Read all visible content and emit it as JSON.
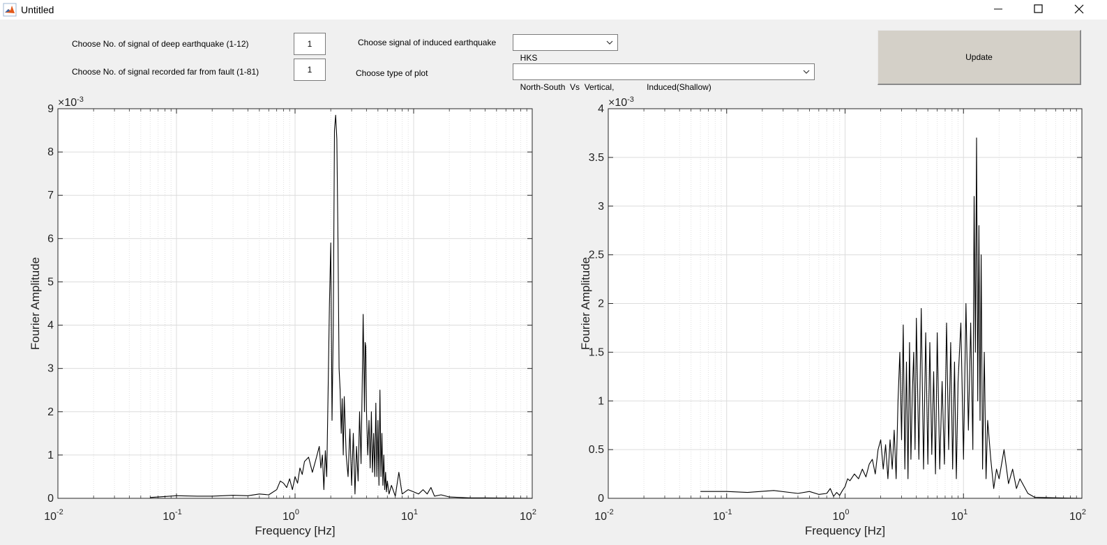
{
  "window": {
    "title": "Untitled"
  },
  "controls": {
    "deep_label": "Choose No. of signal of deep earthquake (1-12)",
    "deep_value": "1",
    "far_label": "Choose No. of signal recorded far from fault (1-81)",
    "far_value": "1",
    "induced_label": "Choose signal of induced earthquake",
    "induced_value": "HKS",
    "plot_type_label": "Choose type of plot",
    "plot_type_value": "North-South  Vs  Vertical,              Induced(Shallow)",
    "update_label": "Update"
  },
  "colors": {
    "background": "#f0f0f0",
    "axes_background": "#ffffff",
    "line": "#000000",
    "grid": "#dcdcdc"
  },
  "chart_data": [
    {
      "type": "line",
      "xscale": "log",
      "xlabel": "Frequency [Hz]",
      "ylabel": "Fourier Amplitude",
      "exponent_label": "×10",
      "exponent_sup": "-3",
      "xlim": [
        0.01,
        100
      ],
      "ylim": [
        0,
        9
      ],
      "xticks": [
        0.01,
        0.1,
        1,
        10,
        100
      ],
      "xtick_labels": [
        {
          "base": "10",
          "exp": "-2"
        },
        {
          "base": "10",
          "exp": "-1"
        },
        {
          "base": "10",
          "exp": "0"
        },
        {
          "base": "10",
          "exp": "1"
        },
        {
          "base": "10",
          "exp": "2"
        }
      ],
      "yticks": [
        0,
        1,
        2,
        3,
        4,
        5,
        6,
        7,
        8,
        9
      ],
      "ytick_labels": [
        "0",
        "1",
        "2",
        "3",
        "4",
        "5",
        "6",
        "7",
        "8",
        "9"
      ],
      "grid": true,
      "series": [
        {
          "x": [
            0.06,
            0.1,
            0.15,
            0.2,
            0.3,
            0.4,
            0.5,
            0.6,
            0.7,
            0.75,
            0.8,
            0.85,
            0.9,
            0.95,
            1.0,
            1.05,
            1.1,
            1.15,
            1.2,
            1.3,
            1.4,
            1.5,
            1.6,
            1.65,
            1.7,
            1.75,
            1.8,
            1.85,
            1.9,
            1.95,
            2.0,
            2.05,
            2.1,
            2.15,
            2.2,
            2.25,
            2.3,
            2.35,
            2.4,
            2.45,
            2.5,
            2.55,
            2.6,
            2.7,
            2.8,
            2.9,
            3.0,
            3.1,
            3.2,
            3.3,
            3.4,
            3.5,
            3.6,
            3.7,
            3.75,
            3.8,
            3.85,
            3.9,
            3.95,
            4.0,
            4.1,
            4.2,
            4.3,
            4.4,
            4.5,
            4.6,
            4.7,
            4.8,
            4.9,
            5.0,
            5.1,
            5.2,
            5.3,
            5.4,
            5.5,
            5.6,
            5.7,
            5.8,
            5.9,
            6.0,
            6.2,
            6.5,
            7.0,
            7.5,
            8.0,
            9.0,
            10.0,
            11.0,
            12.0,
            13.0,
            14.0,
            15.0,
            17.0,
            20.0,
            25.0,
            30.0,
            40.0,
            60.0,
            100.0
          ],
          "y": [
            0.02,
            0.06,
            0.05,
            0.05,
            0.07,
            0.06,
            0.1,
            0.08,
            0.2,
            0.4,
            0.35,
            0.25,
            0.45,
            0.2,
            0.5,
            0.35,
            0.7,
            0.55,
            0.85,
            0.95,
            0.6,
            0.9,
            1.2,
            0.7,
            1.0,
            0.2,
            1.1,
            0.5,
            2.5,
            4.5,
            5.9,
            1.8,
            4.0,
            8.5,
            8.85,
            8.3,
            6.0,
            3.0,
            2.5,
            1.5,
            2.3,
            1.0,
            2.35,
            1.0,
            0.5,
            1.6,
            0.3,
            1.5,
            0.1,
            1.2,
            0.4,
            2.0,
            0.8,
            3.0,
            4.25,
            3.2,
            2.0,
            3.6,
            3.5,
            2.0,
            1.0,
            1.8,
            0.7,
            2.0,
            0.6,
            1.5,
            0.5,
            2.2,
            0.5,
            1.8,
            0.3,
            2.5,
            0.5,
            1.5,
            0.3,
            1.0,
            0.2,
            0.6,
            0.15,
            0.4,
            0.1,
            0.3,
            0.05,
            0.6,
            0.1,
            0.2,
            0.15,
            0.1,
            0.2,
            0.1,
            0.25,
            0.05,
            0.08,
            0.03,
            0.02,
            0.01,
            0.01,
            0.005,
            0.0
          ]
        }
      ]
    },
    {
      "type": "line",
      "xscale": "log",
      "xlabel": "Frequency [Hz]",
      "ylabel": "Fourier Amplitude",
      "exponent_label": "×10",
      "exponent_sup": "-3",
      "xlim": [
        0.01,
        100
      ],
      "ylim": [
        0,
        4
      ],
      "xticks": [
        0.01,
        0.1,
        1,
        10,
        100
      ],
      "xtick_labels": [
        {
          "base": "10",
          "exp": "-2"
        },
        {
          "base": "10",
          "exp": "-1"
        },
        {
          "base": "10",
          "exp": "0"
        },
        {
          "base": "10",
          "exp": "1"
        },
        {
          "base": "10",
          "exp": "2"
        }
      ],
      "yticks": [
        0,
        0.5,
        1,
        1.5,
        2,
        2.5,
        3,
        3.5,
        4
      ],
      "ytick_labels": [
        "0",
        "0.5",
        "1",
        "1.5",
        "2",
        "2.5",
        "3",
        "3.5",
        "4"
      ],
      "grid": true,
      "series": [
        {
          "x": [
            0.06,
            0.1,
            0.15,
            0.25,
            0.4,
            0.5,
            0.6,
            0.7,
            0.75,
            0.8,
            0.85,
            0.9,
            0.95,
            1.0,
            1.05,
            1.1,
            1.2,
            1.3,
            1.4,
            1.5,
            1.6,
            1.7,
            1.8,
            1.9,
            2.0,
            2.1,
            2.2,
            2.3,
            2.4,
            2.5,
            2.6,
            2.7,
            2.8,
            2.9,
            3.0,
            3.1,
            3.2,
            3.3,
            3.4,
            3.5,
            3.6,
            3.7,
            3.8,
            3.9,
            4.0,
            4.2,
            4.4,
            4.6,
            4.8,
            5.0,
            5.2,
            5.4,
            5.6,
            5.8,
            6.0,
            6.3,
            6.6,
            6.9,
            7.2,
            7.5,
            7.8,
            8.1,
            8.4,
            8.7,
            9.0,
            9.5,
            10.0,
            10.5,
            11.0,
            11.5,
            12.0,
            12.3,
            12.6,
            12.9,
            13.2,
            13.5,
            13.8,
            14.1,
            14.5,
            15.0,
            15.5,
            16.0,
            17.0,
            18.0,
            19.0,
            20.0,
            22.0,
            24.0,
            26.0,
            28.0,
            30.0,
            35.0,
            40.0,
            60.0,
            100.0
          ],
          "y": [
            0.07,
            0.07,
            0.06,
            0.08,
            0.05,
            0.07,
            0.04,
            0.05,
            0.1,
            0.02,
            0.06,
            0.03,
            0.08,
            0.12,
            0.2,
            0.18,
            0.25,
            0.2,
            0.3,
            0.22,
            0.35,
            0.4,
            0.25,
            0.5,
            0.6,
            0.3,
            0.55,
            0.2,
            0.6,
            0.3,
            0.7,
            0.2,
            1.0,
            1.5,
            0.6,
            1.78,
            0.3,
            1.4,
            0.2,
            1.6,
            0.4,
            1.1,
            1.5,
            0.5,
            1.85,
            0.4,
            1.95,
            0.3,
            1.7,
            0.35,
            1.6,
            0.45,
            1.3,
            0.25,
            1.7,
            0.3,
            1.2,
            0.35,
            1.8,
            0.5,
            1.6,
            0.3,
            1.4,
            0.2,
            1.2,
            1.8,
            0.4,
            2.0,
            0.7,
            1.8,
            0.5,
            3.1,
            1.5,
            3.7,
            1.0,
            2.8,
            0.8,
            2.5,
            0.3,
            1.5,
            0.2,
            0.8,
            0.4,
            0.1,
            0.3,
            0.2,
            0.5,
            0.15,
            0.3,
            0.1,
            0.2,
            0.05,
            0.01,
            0.005,
            0.0
          ]
        }
      ]
    }
  ]
}
